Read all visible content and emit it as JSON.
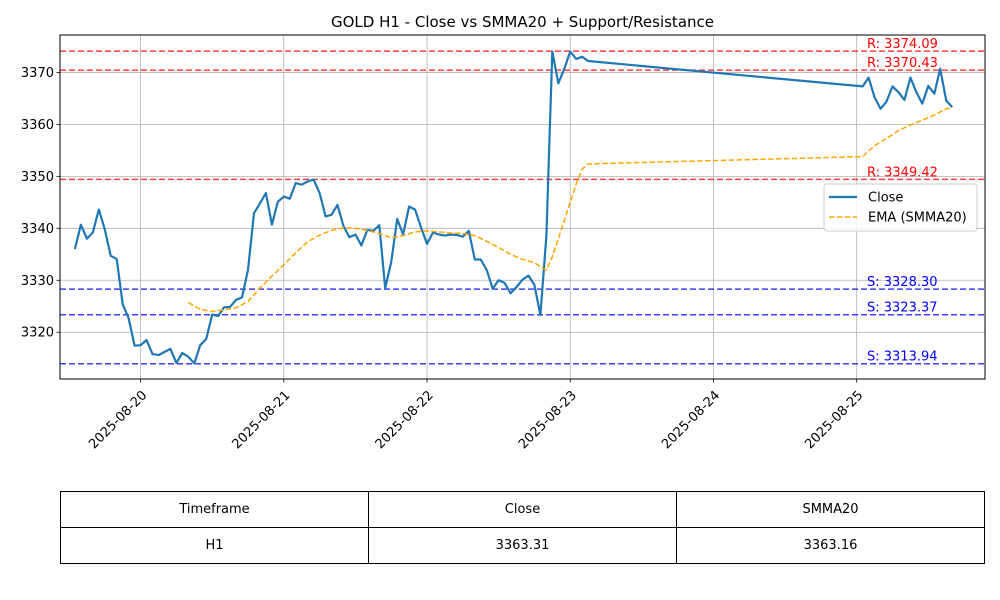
{
  "chart_data": {
    "type": "line",
    "title": "GOLD H1 - Close vs SMMA20 + Support/Resistance",
    "xlabel": "",
    "ylabel": "",
    "x_range": [
      "2025-08-19 10:30",
      "2025-08-25 21:30"
    ],
    "ylim": [
      3311.0,
      3377.2
    ],
    "grid": true,
    "legend_position": "center-right",
    "x_ticks": [
      "2025-08-20",
      "2025-08-21",
      "2025-08-22",
      "2025-08-23",
      "2025-08-24",
      "2025-08-25"
    ],
    "y_ticks": [
      3320,
      3330,
      3340,
      3350,
      3360,
      3370
    ],
    "series": [
      {
        "name": "Close",
        "color": "#1f77b4",
        "style": "solid",
        "points": [
          [
            "2025-08-19 13:00",
            3336.0
          ],
          [
            "2025-08-19 14:00",
            3340.7
          ],
          [
            "2025-08-19 15:00",
            3338.0
          ],
          [
            "2025-08-19 16:00",
            3339.2
          ],
          [
            "2025-08-19 17:00",
            3343.6
          ],
          [
            "2025-08-19 18:00",
            3339.8
          ],
          [
            "2025-08-19 19:00",
            3334.7
          ],
          [
            "2025-08-19 20:00",
            3334.1
          ],
          [
            "2025-08-19 21:00",
            3325.4
          ],
          [
            "2025-08-19 22:00",
            3322.7
          ],
          [
            "2025-08-19 23:00",
            3317.4
          ],
          [
            "2025-08-20 00:00",
            3317.5
          ],
          [
            "2025-08-20 01:00",
            3318.5
          ],
          [
            "2025-08-20 02:00",
            3315.8
          ],
          [
            "2025-08-20 03:00",
            3315.6
          ],
          [
            "2025-08-20 04:00",
            3316.2
          ],
          [
            "2025-08-20 05:00",
            3316.8
          ],
          [
            "2025-08-20 06:00",
            3314.1
          ],
          [
            "2025-08-20 07:00",
            3316.0
          ],
          [
            "2025-08-20 08:00",
            3315.3
          ],
          [
            "2025-08-20 09:00",
            3314.0
          ],
          [
            "2025-08-20 10:00",
            3317.5
          ],
          [
            "2025-08-20 11:00",
            3318.7
          ],
          [
            "2025-08-20 12:00",
            3323.4
          ],
          [
            "2025-08-20 13:00",
            3323.1
          ],
          [
            "2025-08-20 14:00",
            3324.8
          ],
          [
            "2025-08-20 15:00",
            3324.9
          ],
          [
            "2025-08-20 16:00",
            3326.2
          ],
          [
            "2025-08-20 17:00",
            3326.7
          ],
          [
            "2025-08-20 18:00",
            3332.0
          ],
          [
            "2025-08-20 19:00",
            3342.9
          ],
          [
            "2025-08-20 20:00",
            3344.8
          ],
          [
            "2025-08-20 21:00",
            3346.8
          ],
          [
            "2025-08-20 22:00",
            3340.7
          ],
          [
            "2025-08-20 23:00",
            3345.1
          ],
          [
            "2025-08-21 00:00",
            3346.1
          ],
          [
            "2025-08-21 01:00",
            3345.7
          ],
          [
            "2025-08-21 02:00",
            3348.7
          ],
          [
            "2025-08-21 03:00",
            3348.4
          ],
          [
            "2025-08-21 04:00",
            3349.0
          ],
          [
            "2025-08-21 05:00",
            3349.4
          ],
          [
            "2025-08-21 06:00",
            3346.8
          ],
          [
            "2025-08-21 07:00",
            3342.3
          ],
          [
            "2025-08-21 08:00",
            3342.6
          ],
          [
            "2025-08-21 09:00",
            3344.5
          ],
          [
            "2025-08-21 10:00",
            3340.4
          ],
          [
            "2025-08-21 11:00",
            3338.3
          ],
          [
            "2025-08-21 12:00",
            3338.8
          ],
          [
            "2025-08-21 13:00",
            3336.7
          ],
          [
            "2025-08-21 14:00",
            3339.7
          ],
          [
            "2025-08-21 15:00",
            3339.5
          ],
          [
            "2025-08-21 16:00",
            3340.6
          ],
          [
            "2025-08-21 17:00",
            3328.5
          ],
          [
            "2025-08-21 18:00",
            3333.5
          ],
          [
            "2025-08-21 19:00",
            3341.8
          ],
          [
            "2025-08-21 20:00",
            3338.8
          ],
          [
            "2025-08-21 21:00",
            3344.2
          ],
          [
            "2025-08-21 22:00",
            3343.6
          ],
          [
            "2025-08-21 23:00",
            3340.2
          ],
          [
            "2025-08-22 00:00",
            3337.0
          ],
          [
            "2025-08-22 01:00",
            3339.2
          ],
          [
            "2025-08-22 02:00",
            3338.8
          ],
          [
            "2025-08-22 03:00",
            3338.6
          ],
          [
            "2025-08-22 04:00",
            3338.8
          ],
          [
            "2025-08-22 05:00",
            3338.7
          ],
          [
            "2025-08-22 06:00",
            3338.4
          ],
          [
            "2025-08-22 07:00",
            3339.5
          ],
          [
            "2025-08-22 08:00",
            3334.0
          ],
          [
            "2025-08-22 09:00",
            3334.0
          ],
          [
            "2025-08-22 10:00",
            3332.0
          ],
          [
            "2025-08-22 11:00",
            3328.4
          ],
          [
            "2025-08-22 12:00",
            3330.0
          ],
          [
            "2025-08-22 13:00",
            3329.5
          ],
          [
            "2025-08-22 14:00",
            3327.5
          ],
          [
            "2025-08-22 15:00",
            3328.7
          ],
          [
            "2025-08-22 16:00",
            3330.1
          ],
          [
            "2025-08-22 17:00",
            3330.9
          ],
          [
            "2025-08-22 18:00",
            3329.1
          ],
          [
            "2025-08-22 19:00",
            3323.3
          ],
          [
            "2025-08-22 20:00",
            3338.6
          ],
          [
            "2025-08-22 21:00",
            3374.0
          ],
          [
            "2025-08-22 22:00",
            3367.9
          ],
          [
            "2025-08-22 23:00",
            3370.7
          ],
          [
            "2025-08-23 00:00",
            3374.0
          ],
          [
            "2025-08-23 01:00",
            3372.6
          ],
          [
            "2025-08-23 02:00",
            3373.0
          ],
          [
            "2025-08-23 03:00",
            3372.2
          ],
          [
            "2025-08-25 01:00",
            3367.3
          ],
          [
            "2025-08-25 02:00",
            3369.0
          ],
          [
            "2025-08-25 03:00",
            3365.2
          ],
          [
            "2025-08-25 04:00",
            3363.0
          ],
          [
            "2025-08-25 05:00",
            3364.4
          ],
          [
            "2025-08-25 06:00",
            3367.3
          ],
          [
            "2025-08-25 07:00",
            3366.2
          ],
          [
            "2025-08-25 08:00",
            3364.7
          ],
          [
            "2025-08-25 09:00",
            3369.0
          ],
          [
            "2025-08-25 10:00",
            3366.2
          ],
          [
            "2025-08-25 11:00",
            3364.0
          ],
          [
            "2025-08-25 12:00",
            3367.4
          ],
          [
            "2025-08-25 13:00",
            3365.9
          ],
          [
            "2025-08-25 14:00",
            3370.7
          ],
          [
            "2025-08-25 15:00",
            3364.6
          ],
          [
            "2025-08-25 16:00",
            3363.3
          ]
        ]
      },
      {
        "name": "EMA (SMMA20)",
        "color": "#ffa500",
        "style": "dashed",
        "points": [
          [
            "2025-08-20 08:00",
            3325.7
          ],
          [
            "2025-08-20 10:00",
            3324.4
          ],
          [
            "2025-08-20 12:00",
            3324.0
          ],
          [
            "2025-08-20 14:00",
            3324.3
          ],
          [
            "2025-08-20 16:00",
            3324.7
          ],
          [
            "2025-08-20 18:00",
            3325.9
          ],
          [
            "2025-08-20 20:00",
            3328.5
          ],
          [
            "2025-08-20 22:00",
            3330.8
          ],
          [
            "2025-08-21 00:00",
            3333.0
          ],
          [
            "2025-08-21 02:00",
            3335.3
          ],
          [
            "2025-08-21 04:00",
            3337.4
          ],
          [
            "2025-08-21 06:00",
            3338.7
          ],
          [
            "2025-08-21 08:00",
            3339.6
          ],
          [
            "2025-08-21 10:00",
            3340.1
          ],
          [
            "2025-08-21 12:00",
            3340.0
          ],
          [
            "2025-08-21 14:00",
            3339.6
          ],
          [
            "2025-08-21 16:00",
            3339.0
          ],
          [
            "2025-08-21 18:00",
            3338.2
          ],
          [
            "2025-08-21 20:00",
            3338.6
          ],
          [
            "2025-08-21 22:00",
            3339.3
          ],
          [
            "2025-08-22 00:00",
            3339.5
          ],
          [
            "2025-08-22 02:00",
            3339.3
          ],
          [
            "2025-08-22 04:00",
            3339.1
          ],
          [
            "2025-08-22 06:00",
            3339.0
          ],
          [
            "2025-08-22 08:00",
            3338.6
          ],
          [
            "2025-08-22 10:00",
            3337.5
          ],
          [
            "2025-08-22 12:00",
            3336.3
          ],
          [
            "2025-08-22 14:00",
            3335.0
          ],
          [
            "2025-08-22 16:00",
            3334.0
          ],
          [
            "2025-08-22 18:00",
            3333.4
          ],
          [
            "2025-08-22 19:00",
            3332.6
          ],
          [
            "2025-08-22 20:00",
            3332.0
          ],
          [
            "2025-08-22 21:00",
            3334.5
          ],
          [
            "2025-08-22 22:00",
            3338.0
          ],
          [
            "2025-08-22 23:00",
            3341.5
          ],
          [
            "2025-08-23 00:00",
            3345.0
          ],
          [
            "2025-08-23 01:00",
            3348.5
          ],
          [
            "2025-08-23 02:00",
            3351.4
          ],
          [
            "2025-08-23 03:00",
            3352.4
          ],
          [
            "2025-08-25 01:00",
            3353.8
          ],
          [
            "2025-08-25 03:00",
            3355.9
          ],
          [
            "2025-08-25 05:00",
            3357.3
          ],
          [
            "2025-08-25 07:00",
            3358.8
          ],
          [
            "2025-08-25 09:00",
            3359.9
          ],
          [
            "2025-08-25 11:00",
            3360.8
          ],
          [
            "2025-08-25 13:00",
            3361.8
          ],
          [
            "2025-08-25 15:00",
            3363.0
          ],
          [
            "2025-08-25 16:00",
            3363.2
          ]
        ]
      }
    ],
    "resistance": [
      3374.09,
      3370.43,
      3349.42
    ],
    "support": [
      3328.3,
      3323.37,
      3313.94
    ],
    "resistance_labels": [
      "R: 3374.09",
      "R: 3370.43",
      "R: 3349.42"
    ],
    "support_labels": [
      "S: 3328.30",
      "S: 3323.37",
      "S: 3313.94"
    ],
    "resistance_color": "#ff0000",
    "support_color": "#0000ff"
  },
  "table": {
    "headers": [
      "Timeframe",
      "Close",
      "SMMA20"
    ],
    "rows": [
      [
        "H1",
        "3363.31",
        "3363.16"
      ]
    ]
  }
}
